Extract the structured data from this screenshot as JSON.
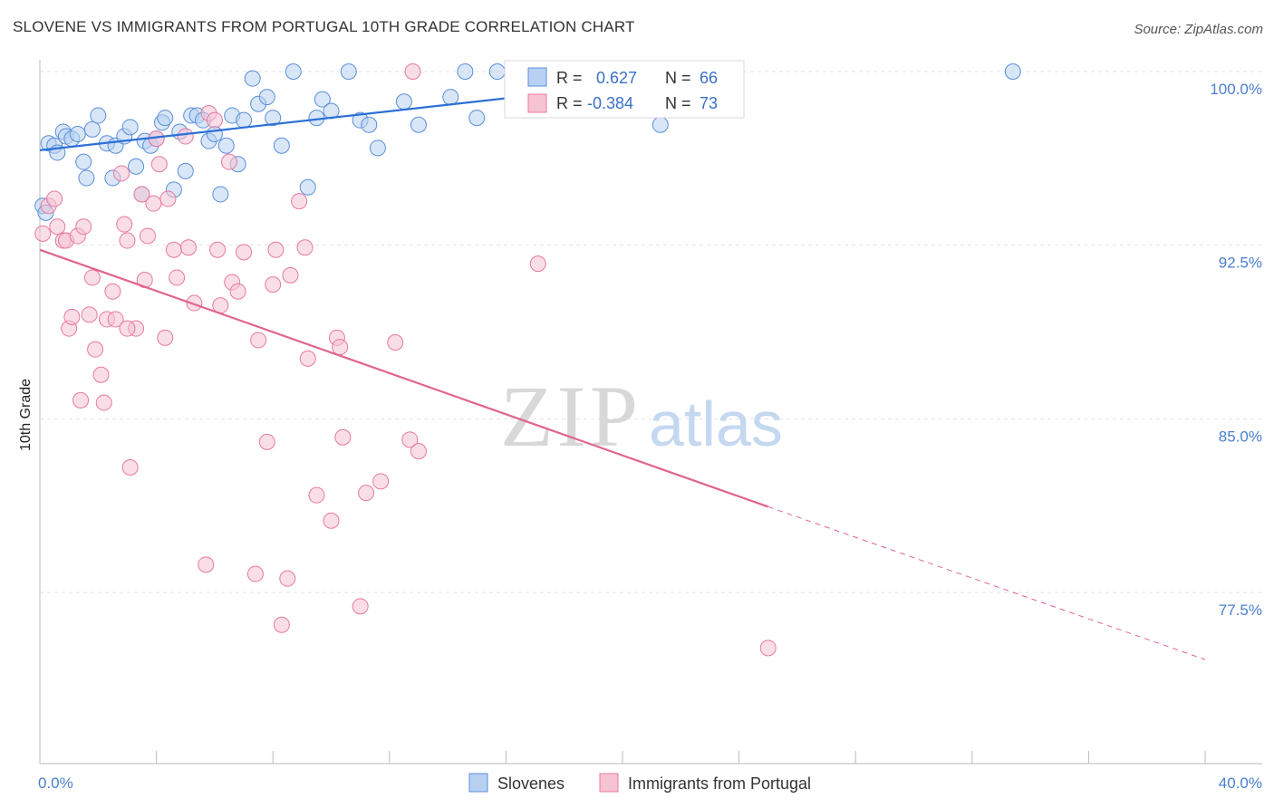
{
  "title": "SLOVENE VS IMMIGRANTS FROM PORTUGAL 10TH GRADE CORRELATION CHART",
  "source": "Source: ZipAtlas.com",
  "watermark": {
    "zip": "ZIP",
    "atlas": "atlas"
  },
  "legend": {
    "rows": [
      {
        "r_label": "R =",
        "r_value": "0.627",
        "n_label": "N =",
        "n_value": "66"
      },
      {
        "r_label": "R =",
        "r_value": "-0.384",
        "n_label": "N =",
        "n_value": "73"
      }
    ]
  },
  "bottom_legend": [
    {
      "label": "Slovenes"
    },
    {
      "label": "Immigrants from Portugal"
    }
  ],
  "colors": {
    "blue": "#5b8fd8",
    "blue_fill": "#b8d1f3",
    "blue_line": "#2b6fd6",
    "pink": "#e8799f",
    "pink_fill": "#f6c3d3",
    "pink_line": "#e0648f",
    "tick_text": "#4a7fd0",
    "grid": "#e2e2e2"
  },
  "chart_data": {
    "type": "scatter",
    "title": "SLOVENE VS IMMIGRANTS FROM PORTUGAL 10TH GRADE CORRELATION CHART",
    "xlabel": "",
    "ylabel": "10th Grade",
    "xlim": [
      0,
      40
    ],
    "ylim": [
      71.5,
      101.5
    ],
    "x_tick_labels": [
      "0.0%",
      "40.0%"
    ],
    "y_ticks": [
      77.5,
      85.0,
      92.5,
      100.0
    ],
    "y_tick_labels": [
      "77.5%",
      "85.0%",
      "92.5%",
      "100.0%"
    ],
    "grid": true,
    "series": [
      {
        "name": "Slovenes",
        "R": 0.627,
        "N": 66,
        "trend": {
          "x": [
            0,
            23.5
          ],
          "y": [
            96.6,
            99.9
          ]
        },
        "points": [
          [
            0.1,
            94.2
          ],
          [
            0.2,
            93.9
          ],
          [
            0.3,
            96.9
          ],
          [
            0.5,
            96.8
          ],
          [
            0.6,
            96.5
          ],
          [
            0.8,
            97.4
          ],
          [
            0.9,
            97.2
          ],
          [
            1.1,
            97.1
          ],
          [
            1.3,
            97.3
          ],
          [
            1.5,
            96.1
          ],
          [
            1.6,
            95.4
          ],
          [
            1.8,
            97.5
          ],
          [
            2.0,
            98.1
          ],
          [
            2.3,
            96.9
          ],
          [
            2.5,
            95.4
          ],
          [
            2.6,
            96.8
          ],
          [
            2.9,
            97.2
          ],
          [
            3.1,
            97.6
          ],
          [
            3.3,
            95.9
          ],
          [
            3.5,
            94.7
          ],
          [
            3.6,
            97.0
          ],
          [
            3.8,
            96.8
          ],
          [
            4.0,
            97.1
          ],
          [
            4.2,
            97.8
          ],
          [
            4.3,
            98.0
          ],
          [
            4.6,
            94.9
          ],
          [
            4.8,
            97.4
          ],
          [
            5.0,
            95.7
          ],
          [
            5.2,
            98.1
          ],
          [
            5.4,
            98.1
          ],
          [
            5.6,
            97.9
          ],
          [
            5.8,
            97.0
          ],
          [
            6.0,
            97.3
          ],
          [
            6.2,
            94.7
          ],
          [
            6.4,
            96.8
          ],
          [
            6.6,
            98.1
          ],
          [
            6.8,
            96.0
          ],
          [
            7.0,
            97.9
          ],
          [
            7.3,
            99.7
          ],
          [
            7.5,
            98.6
          ],
          [
            7.8,
            98.9
          ],
          [
            8.0,
            98.0
          ],
          [
            8.3,
            96.8
          ],
          [
            8.7,
            100.0
          ],
          [
            9.2,
            95.0
          ],
          [
            9.5,
            98.0
          ],
          [
            9.7,
            98.8
          ],
          [
            10.0,
            98.3
          ],
          [
            10.6,
            100.0
          ],
          [
            11.0,
            97.9
          ],
          [
            11.3,
            97.7
          ],
          [
            11.6,
            96.7
          ],
          [
            12.5,
            98.7
          ],
          [
            13.0,
            97.7
          ],
          [
            14.1,
            98.9
          ],
          [
            14.6,
            100.0
          ],
          [
            15.0,
            98.0
          ],
          [
            15.7,
            100.0
          ],
          [
            16.5,
            100.0
          ],
          [
            17.3,
            100.0
          ],
          [
            18.8,
            100.0
          ],
          [
            19.2,
            100.0
          ],
          [
            21.3,
            97.7
          ],
          [
            21.8,
            99.9
          ],
          [
            23.0,
            100.0
          ],
          [
            33.4,
            100.0
          ]
        ]
      },
      {
        "name": "Immigrants from Portugal",
        "R": -0.384,
        "N": 73,
        "trend": {
          "x": [
            0,
            25
          ],
          "y": [
            92.3,
            81.2
          ]
        },
        "trend_dashed": {
          "x": [
            25,
            40
          ],
          "y": [
            81.2,
            74.6
          ]
        },
        "points": [
          [
            0.1,
            93.0
          ],
          [
            0.3,
            94.2
          ],
          [
            0.5,
            94.5
          ],
          [
            0.6,
            93.3
          ],
          [
            0.8,
            92.7
          ],
          [
            0.9,
            92.7
          ],
          [
            1.0,
            88.9
          ],
          [
            1.1,
            89.4
          ],
          [
            1.3,
            92.9
          ],
          [
            1.4,
            85.8
          ],
          [
            1.5,
            93.3
          ],
          [
            1.7,
            89.5
          ],
          [
            1.8,
            91.1
          ],
          [
            1.9,
            88.0
          ],
          [
            2.1,
            86.9
          ],
          [
            2.2,
            85.7
          ],
          [
            2.3,
            89.3
          ],
          [
            2.5,
            90.5
          ],
          [
            2.6,
            89.3
          ],
          [
            2.8,
            95.6
          ],
          [
            2.9,
            93.4
          ],
          [
            3.0,
            92.7
          ],
          [
            3.1,
            82.9
          ],
          [
            3.3,
            88.9
          ],
          [
            3.5,
            94.7
          ],
          [
            3.6,
            91.0
          ],
          [
            3.7,
            92.9
          ],
          [
            3.9,
            94.3
          ],
          [
            4.0,
            97.1
          ],
          [
            4.1,
            96.0
          ],
          [
            4.3,
            88.5
          ],
          [
            4.4,
            94.5
          ],
          [
            4.6,
            92.3
          ],
          [
            4.7,
            91.1
          ],
          [
            5.0,
            97.2
          ],
          [
            5.1,
            92.4
          ],
          [
            5.3,
            90.0
          ],
          [
            5.7,
            78.7
          ],
          [
            5.8,
            98.2
          ],
          [
            6.0,
            97.9
          ],
          [
            6.1,
            92.3
          ],
          [
            6.2,
            89.9
          ],
          [
            6.5,
            96.1
          ],
          [
            6.6,
            90.9
          ],
          [
            6.8,
            90.5
          ],
          [
            7.0,
            92.2
          ],
          [
            7.4,
            78.3
          ],
          [
            7.5,
            88.4
          ],
          [
            7.8,
            84.0
          ],
          [
            8.0,
            90.8
          ],
          [
            8.1,
            92.3
          ],
          [
            8.3,
            76.1
          ],
          [
            8.5,
            78.1
          ],
          [
            8.6,
            91.2
          ],
          [
            8.9,
            94.4
          ],
          [
            9.1,
            92.4
          ],
          [
            9.2,
            87.6
          ],
          [
            9.5,
            81.7
          ],
          [
            10.0,
            80.6
          ],
          [
            10.2,
            88.5
          ],
          [
            10.3,
            88.1
          ],
          [
            10.4,
            84.2
          ],
          [
            11.0,
            76.9
          ],
          [
            11.2,
            81.8
          ],
          [
            11.7,
            82.3
          ],
          [
            12.2,
            88.3
          ],
          [
            12.7,
            84.1
          ],
          [
            12.8,
            100.0
          ],
          [
            13.0,
            83.6
          ],
          [
            16.8,
            100.0
          ],
          [
            17.1,
            91.7
          ],
          [
            25.0,
            75.1
          ],
          [
            3.0,
            88.9
          ]
        ]
      }
    ]
  }
}
